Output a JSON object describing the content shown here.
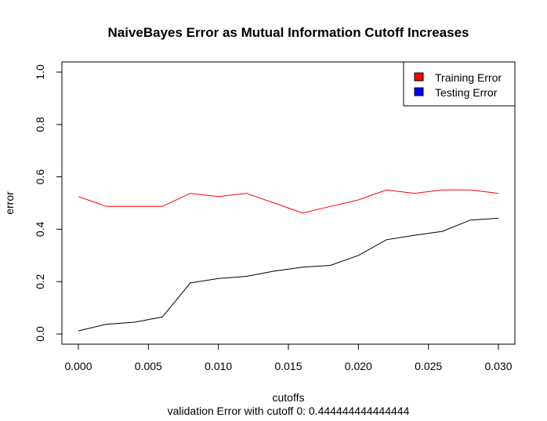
{
  "chart_data": {
    "type": "line",
    "title": "NaiveBayes Error as Mutual Information Cutoff Increases",
    "xlabel": "cutoffs",
    "ylabel": "error",
    "subtitle": "validation Error with cutoff 0:  0.444444444444444",
    "xlim": [
      0.0,
      0.03
    ],
    "ylim": [
      0.0,
      1.0
    ],
    "x": [
      0.0,
      0.002,
      0.004,
      0.006,
      0.008,
      0.01,
      0.012,
      0.014,
      0.016,
      0.018,
      0.02,
      0.022,
      0.024,
      0.026,
      0.028,
      0.03
    ],
    "x_tick_labels": [
      "0.000",
      "0.005",
      "0.010",
      "0.015",
      "0.020",
      "0.025",
      "0.030"
    ],
    "y_tick_labels": [
      "0.0",
      "0.2",
      "0.4",
      "0.6",
      "0.8",
      "1.0"
    ],
    "grid": false,
    "legend_position": "top-right",
    "series": [
      {
        "name": "Training Error",
        "color": "#ff0000",
        "legend_color": "#ff0000",
        "values": [
          0.525,
          0.487,
          0.487,
          0.487,
          0.537,
          0.525,
          0.537,
          0.5,
          0.462,
          0.487,
          0.512,
          0.55,
          0.537,
          0.55,
          0.55,
          0.537
        ]
      },
      {
        "name": "Testing Error",
        "color": "#000000",
        "legend_color": "#0000ff",
        "values": [
          0.012,
          0.037,
          0.045,
          0.065,
          0.195,
          0.212,
          0.22,
          0.24,
          0.255,
          0.262,
          0.3,
          0.36,
          0.377,
          0.392,
          0.435,
          0.442
        ]
      }
    ]
  }
}
